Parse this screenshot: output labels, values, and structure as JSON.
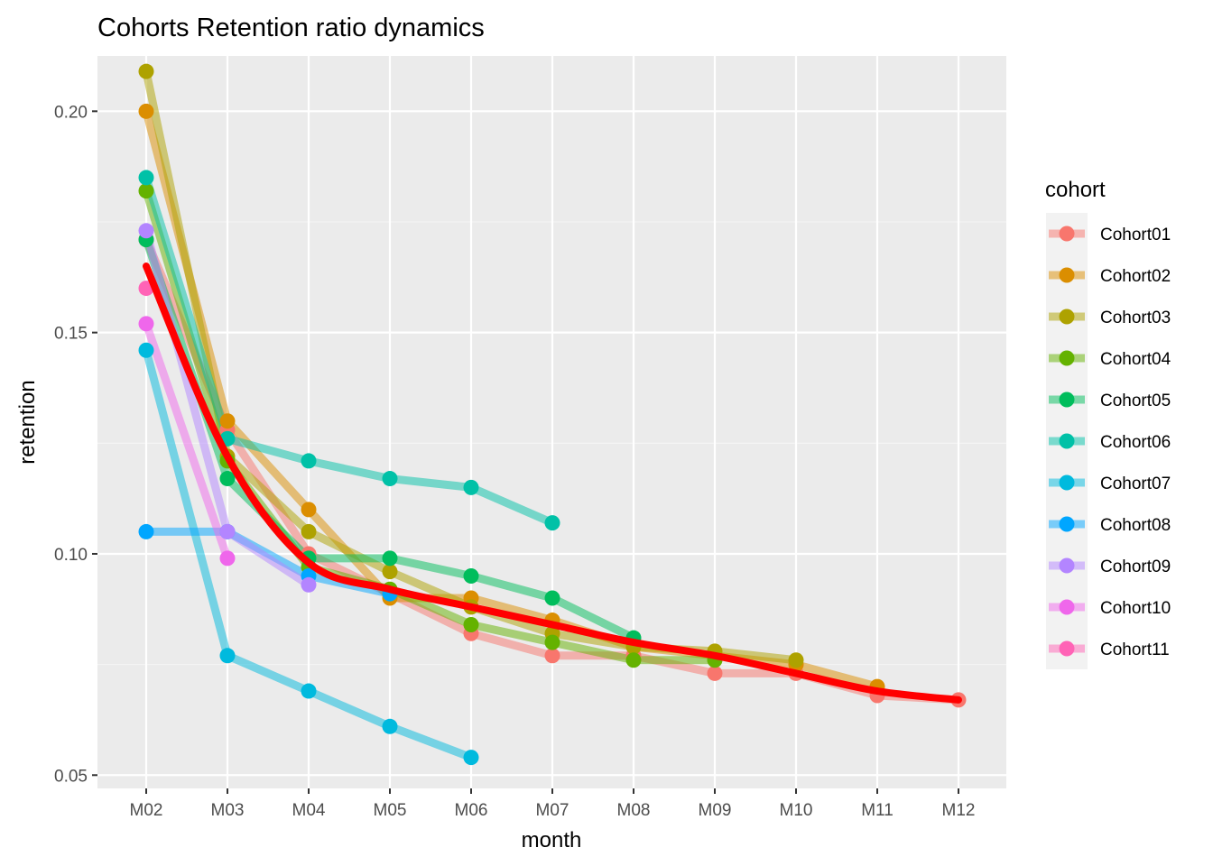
{
  "chart_data": {
    "type": "line",
    "title": "Cohorts Retention ratio dynamics",
    "xlabel": "month",
    "ylabel": "retention",
    "categories": [
      "M02",
      "M03",
      "M04",
      "M05",
      "M06",
      "M07",
      "M08",
      "M09",
      "M10",
      "M11",
      "M12"
    ],
    "y_ticks": [
      "0.05",
      "0.10",
      "0.15",
      "0.20"
    ],
    "y_tick_values": [
      0.05,
      0.1,
      0.15,
      0.2
    ],
    "ylim": [
      0.047,
      0.2125
    ],
    "grid": true,
    "legend": {
      "title": "cohort",
      "position": "right"
    },
    "series": [
      {
        "name": "Cohort01",
        "color": "#F8766D",
        "values": [
          0.171,
          0.128,
          0.1,
          0.091,
          0.082,
          0.077,
          0.077,
          0.073,
          0.073,
          0.068,
          0.067
        ]
      },
      {
        "name": "Cohort02",
        "color": "#DB8E00",
        "values": [
          0.2,
          0.13,
          0.11,
          0.09,
          0.09,
          0.085,
          0.079,
          0.077,
          0.075,
          0.07,
          null
        ]
      },
      {
        "name": "Cohort03",
        "color": "#AEA200",
        "values": [
          0.209,
          0.122,
          0.105,
          0.096,
          0.088,
          0.082,
          0.079,
          0.078,
          0.076,
          null,
          null
        ]
      },
      {
        "name": "Cohort04",
        "color": "#64B200",
        "values": [
          0.182,
          0.121,
          0.097,
          0.092,
          0.084,
          0.08,
          0.076,
          0.076,
          null,
          null,
          null
        ]
      },
      {
        "name": "Cohort05",
        "color": "#00BD5C",
        "values": [
          0.171,
          0.117,
          0.099,
          0.099,
          0.095,
          0.09,
          0.081,
          null,
          null,
          null,
          null
        ]
      },
      {
        "name": "Cohort06",
        "color": "#00C1A7",
        "values": [
          0.185,
          0.126,
          0.121,
          0.117,
          0.115,
          0.107,
          null,
          null,
          null,
          null,
          null
        ]
      },
      {
        "name": "Cohort07",
        "color": "#00BADE",
        "values": [
          0.146,
          0.077,
          0.069,
          0.061,
          0.054,
          null,
          null,
          null,
          null,
          null,
          null
        ]
      },
      {
        "name": "Cohort08",
        "color": "#00A6FF",
        "values": [
          0.105,
          0.105,
          0.095,
          0.091,
          null,
          null,
          null,
          null,
          null,
          null,
          null
        ]
      },
      {
        "name": "Cohort09",
        "color": "#B385FF",
        "values": [
          0.173,
          0.105,
          0.093,
          null,
          null,
          null,
          null,
          null,
          null,
          null,
          null
        ]
      },
      {
        "name": "Cohort10",
        "color": "#EF67EB",
        "values": [
          0.152,
          0.099,
          null,
          null,
          null,
          null,
          null,
          null,
          null,
          null,
          null
        ]
      },
      {
        "name": "Cohort11",
        "color": "#FF63B6",
        "values": [
          0.16,
          null,
          null,
          null,
          null,
          null,
          null,
          null,
          null,
          null,
          null
        ]
      }
    ],
    "smooth_line": {
      "color": "#FF0000",
      "values": [
        0.165,
        0.122,
        0.098,
        0.092,
        0.088,
        0.084,
        0.08,
        0.077,
        0.073,
        0.069,
        0.067
      ]
    }
  }
}
